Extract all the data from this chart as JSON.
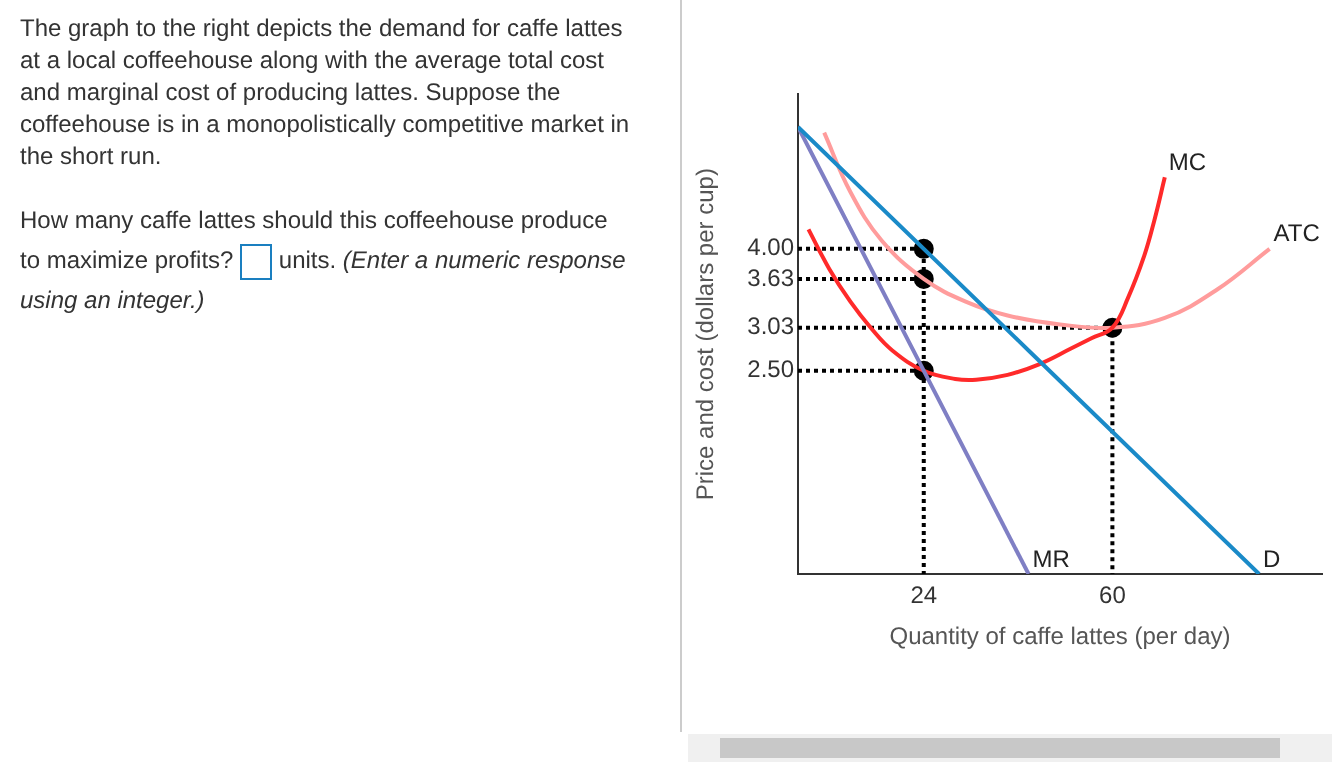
{
  "chart_data": {
    "type": "line",
    "xlabel": "Quantity of caffe lattes (per day)",
    "ylabel": "Price and cost (dollars per cup)",
    "annotations": [
      "The graph to the right depicts the demand for caffe lattes at a local coffeehouse along with the average total cost and marginal cost of producing lattes. Suppose the coffeehouse is in a monopolistically competitive market in the short run.",
      "How many caffe lattes should this coffeehouse produce to maximize profits?",
      "units.",
      "(Enter a numeric response using an integer.)"
    ],
    "xlim": [
      0,
      100
    ],
    "xticks": [
      24,
      60
    ],
    "ylim": [
      0,
      5.9
    ],
    "yticks": [
      {
        "value": 2.5,
        "label": "2.50"
      },
      {
        "value": 3.03,
        "label": "3.03"
      },
      {
        "value": 3.63,
        "label": "3.63"
      },
      {
        "value": 4,
        "label": "4.00"
      }
    ],
    "grid": false,
    "legend": false,
    "marker": "none",
    "line_style": "solid",
    "series": [
      {
        "name": "D",
        "color": "#1a8ac8",
        "x": [
          0,
          88
        ],
        "values": [
          5.5,
          0
        ]
      },
      {
        "name": "MR",
        "color": "#7f7fc4",
        "x": [
          0,
          44
        ],
        "values": [
          5.5,
          0
        ]
      },
      {
        "name": "MC",
        "color": "#ff2a2a",
        "x": [
          2,
          6,
          10,
          14,
          18,
          24,
          30,
          34,
          40,
          46,
          52,
          56,
          60,
          63,
          66,
          68,
          70
        ],
        "values": [
          4.24,
          3.75,
          3.35,
          3.02,
          2.75,
          2.5,
          2.4,
          2.39,
          2.45,
          2.58,
          2.77,
          2.9,
          3.03,
          3.4,
          3.9,
          4.35,
          4.88
        ]
      },
      {
        "name": "ATC",
        "color": "#ff9c9c",
        "x": [
          5,
          10,
          16,
          24,
          32,
          40,
          50,
          60,
          70,
          80,
          90
        ],
        "values": [
          5.43,
          4.7,
          4.1,
          3.63,
          3.35,
          3.18,
          3.07,
          3.03,
          3.15,
          3.5,
          4.0
        ]
      },
      {
        "type": "line",
        "color": "#000000",
        "line_style": "dotted",
        "x": [
          0,
          24,
          24
        ],
        "values": [
          4.0,
          4.0,
          0
        ]
      },
      {
        "type": "line",
        "color": "#000000",
        "line_style": "dotted",
        "x": [
          0,
          24
        ],
        "values": [
          3.63,
          3.63
        ]
      },
      {
        "type": "line",
        "color": "#000000",
        "line_style": "dotted",
        "x": [
          0,
          24
        ],
        "values": [
          2.5,
          2.5
        ]
      },
      {
        "type": "line",
        "color": "#000000",
        "line_style": "dotted",
        "x": [
          0,
          60,
          60
        ],
        "values": [
          3.03,
          3.03,
          0
        ]
      },
      {
        "type": "scatter",
        "marker": "circle",
        "color": "#000000",
        "x": [
          24,
          24,
          24,
          60
        ],
        "values": [
          4.0,
          3.63,
          2.5,
          3.03
        ]
      }
    ]
  }
}
